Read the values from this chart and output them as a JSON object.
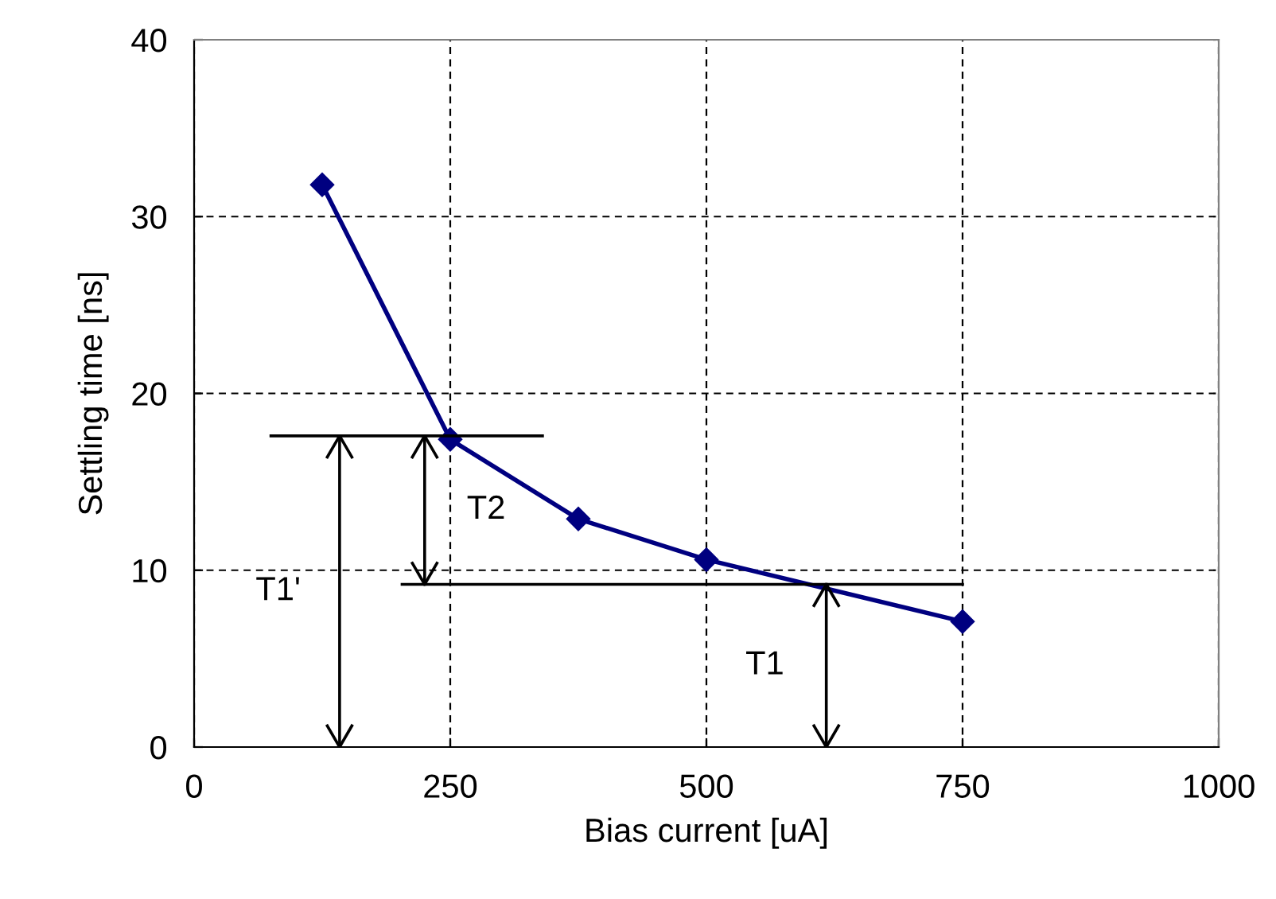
{
  "chart_data": {
    "type": "line",
    "xlabel": "Bias current [uA]",
    "ylabel": "Settling time [ns]",
    "xlim": [
      0,
      1000
    ],
    "xticks": [
      0,
      250,
      500,
      750,
      1000
    ],
    "ylim": [
      0,
      40
    ],
    "yticks": [
      0,
      10,
      20,
      30,
      40
    ],
    "grid": true,
    "marker": "diamond",
    "line_style": "solid",
    "series": [
      {
        "color": "#000080",
        "x": [
          125,
          250,
          375,
          500,
          750
        ],
        "values": [
          31.8,
          17.4,
          12.9,
          10.6,
          7.1
        ]
      },
      {
        "type": "line",
        "marker": "none",
        "color": "#000000",
        "x": [
          75,
          340
        ],
        "values": [
          17.6,
          17.6
        ]
      },
      {
        "type": "line",
        "marker": "none",
        "color": "#000000",
        "x": [
          203,
          750
        ],
        "values": [
          9.2,
          9.2
        ]
      },
      {
        "type": "line",
        "marker": "none",
        "color": "#000000",
        "x": [
          142,
          142
        ],
        "values": [
          0,
          17.6
        ]
      },
      {
        "type": "line",
        "marker": "none",
        "color": "#000000",
        "x": [
          225,
          225
        ],
        "values": [
          9.2,
          17.6
        ]
      },
      {
        "type": "line",
        "marker": "none",
        "color": "#000000",
        "x": [
          617,
          617
        ],
        "values": [
          0,
          9.2
        ]
      }
    ],
    "annotations": [
      "T1'",
      "T2",
      "T1"
    ]
  }
}
